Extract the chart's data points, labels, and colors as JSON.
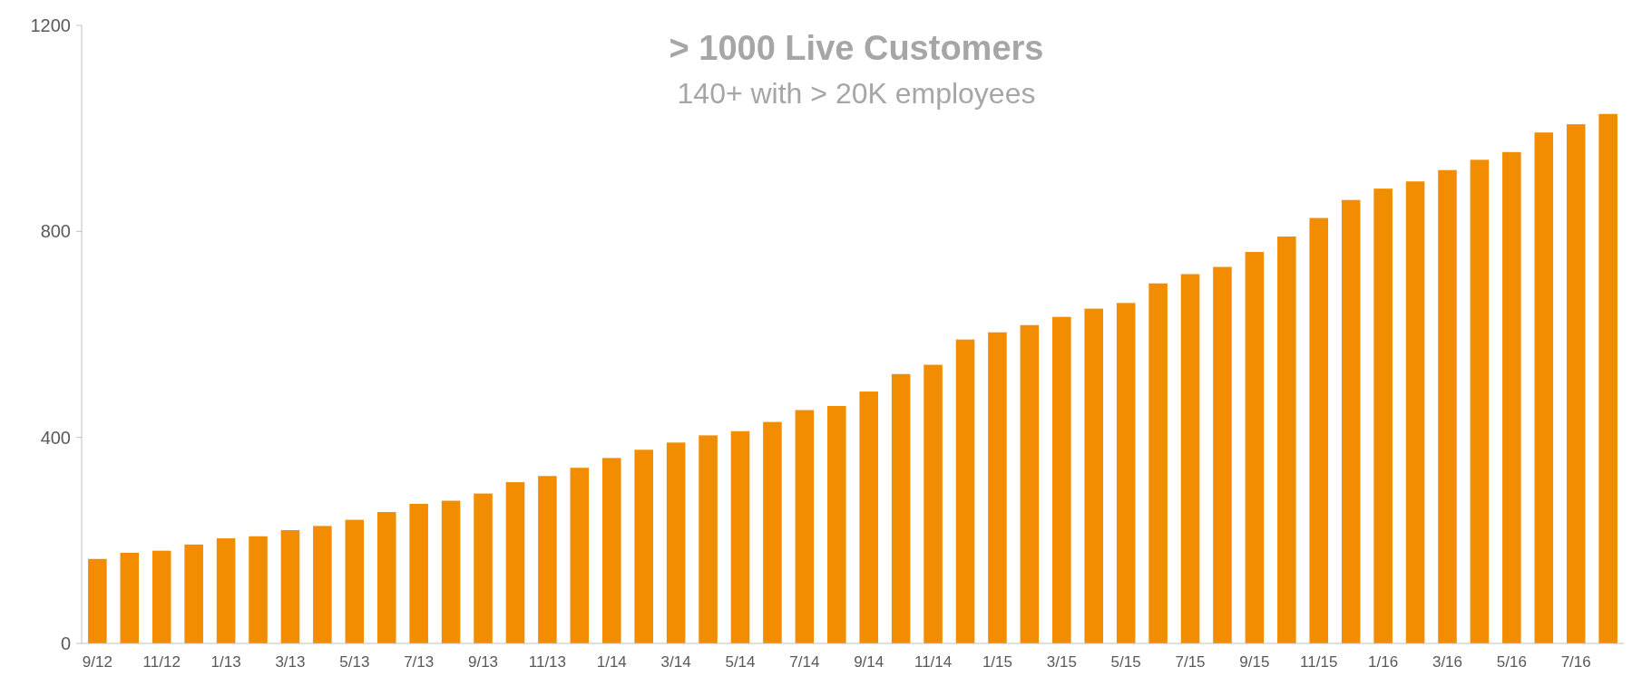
{
  "chart_data": {
    "type": "bar",
    "title": "> 1000 Live Customers",
    "subtitle": "140+ with > 20K employees",
    "categories": [
      "9/12",
      null,
      "11/12",
      null,
      "1/13",
      null,
      "3/13",
      null,
      "5/13",
      null,
      "7/13",
      null,
      "9/13",
      null,
      "11/13",
      null,
      "1/14",
      null,
      "3/14",
      null,
      "5/14",
      null,
      "7/14",
      null,
      "9/14",
      null,
      "11/14",
      null,
      "1/15",
      null,
      "3/15",
      null,
      "5/15",
      null,
      "7/15",
      null,
      "9/15",
      null,
      "11/15",
      null,
      "1/16",
      null,
      "3/16",
      null,
      "5/16",
      null,
      "7/16",
      null
    ],
    "values": [
      164,
      176,
      180,
      192,
      204,
      208,
      220,
      228,
      240,
      255,
      271,
      277,
      291,
      313,
      325,
      341,
      360,
      376,
      390,
      404,
      412,
      430,
      453,
      461,
      489,
      523,
      541,
      590,
      604,
      618,
      634,
      650,
      661,
      699,
      717,
      731,
      760,
      790,
      826,
      861,
      883,
      897,
      919,
      939,
      954,
      992,
      1008,
      1028
    ],
    "color": "#f28c00",
    "ylim": [
      0,
      1200
    ],
    "yticks": [
      0,
      400,
      800,
      1200
    ],
    "grid": false
  }
}
